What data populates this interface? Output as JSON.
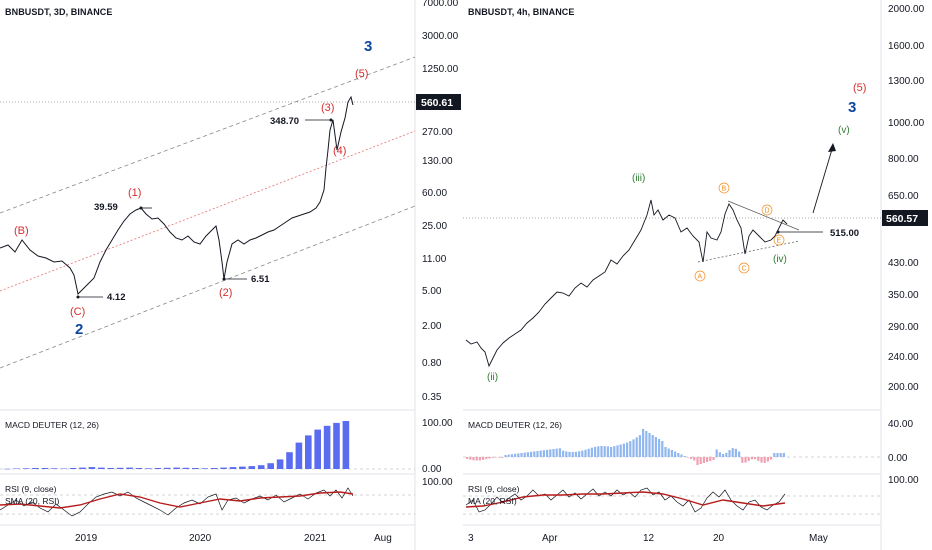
{
  "chart_data": [
    {
      "type": "line",
      "symbol": "BNBUSDT, 3D, BINANCE",
      "price_scale": "log",
      "y_ticks": [
        "7000.00",
        "3000.00",
        "1250.00",
        "560.61",
        "270.00",
        "130.00",
        "60.00",
        "25.00",
        "11.00",
        "5.00",
        "2.00",
        "0.80",
        "0.35"
      ],
      "last_price": "560.61",
      "x_ticks": [
        "2019",
        "2020",
        "2021",
        "Aug"
      ],
      "series": [
        {
          "values": [
            {
              "date": "2018-07",
              "close": 15.5
            },
            {
              "date": "2018-09",
              "close": 10.2
            },
            {
              "date": "2018-11",
              "close": 7.0
            },
            {
              "date": "2018-12",
              "close": 4.12
            },
            {
              "date": "2019-02",
              "close": 10.5
            },
            {
              "date": "2019-04",
              "close": 22.0
            },
            {
              "date": "2019-06",
              "close": 39.59
            },
            {
              "date": "2019-08",
              "close": 28.0
            },
            {
              "date": "2019-10",
              "close": 18.0
            },
            {
              "date": "2019-12",
              "close": 14.0
            },
            {
              "date": "2020-02",
              "close": 24.0
            },
            {
              "date": "2020-03",
              "close": 6.51
            },
            {
              "date": "2020-05",
              "close": 17.0
            },
            {
              "date": "2020-08",
              "close": 23.0
            },
            {
              "date": "2020-11",
              "close": 30.0
            },
            {
              "date": "2021-01",
              "close": 45.0
            },
            {
              "date": "2021-02",
              "close": 348.7
            },
            {
              "date": "2021-03",
              "close": 200.0
            },
            {
              "date": "2021-04",
              "close": 560.61
            }
          ]
        }
      ],
      "annotations": [
        {
          "text": "3",
          "kind": "wave-blue"
        },
        {
          "text": "2",
          "kind": "wave-blue"
        },
        {
          "text": "(5)",
          "kind": "wave-red"
        },
        {
          "text": "(3)",
          "kind": "wave-red"
        },
        {
          "text": "(4)",
          "kind": "wave-red"
        },
        {
          "text": "(1)",
          "kind": "wave-red"
        },
        {
          "text": "(2)",
          "kind": "wave-red"
        },
        {
          "text": "(B)",
          "kind": "wave-red"
        },
        {
          "text": "(C)",
          "kind": "wave-red"
        },
        {
          "text": "348.70",
          "kind": "price"
        },
        {
          "text": "39.59",
          "kind": "price"
        },
        {
          "text": "6.51",
          "kind": "price"
        },
        {
          "text": "4.12",
          "kind": "price"
        }
      ],
      "indicators": [
        {
          "label": "MACD DEUTER (12, 26)",
          "y_ticks": [
            "100.00",
            "0.00"
          ],
          "values": [
            0.5,
            1,
            1.5,
            2,
            2,
            1.5,
            1,
            2,
            3,
            4,
            3,
            2,
            2.5,
            3,
            2,
            1.5,
            2,
            2.5,
            3,
            2.5,
            2,
            1.5,
            2,
            3,
            4,
            5,
            6,
            8,
            12,
            20,
            35,
            55,
            70,
            82,
            90,
            96,
            100
          ]
        },
        {
          "label": "RSI (9, close)",
          "label2": "SMA (20, RSI)",
          "y_ticks": [
            "100.00"
          ]
        }
      ]
    },
    {
      "type": "line",
      "symbol": "BNBUSDT, 4h, BINANCE",
      "price_scale": "log",
      "y_ticks": [
        "2000.00",
        "1600.00",
        "1300.00",
        "1000.00",
        "800.00",
        "650.00",
        "560.57",
        "430.00",
        "350.00",
        "290.00",
        "240.00",
        "200.00"
      ],
      "last_price": "560.57",
      "x_ticks": [
        "3",
        "Apr",
        "12",
        "20",
        "May"
      ],
      "series": [
        {
          "values": [
            {
              "date": "2021-03-03",
              "close": 262
            },
            {
              "date": "2021-03-05",
              "close": 230
            },
            {
              "date": "2021-03-09",
              "close": 255
            },
            {
              "date": "2021-03-15",
              "close": 300
            },
            {
              "date": "2021-03-22",
              "close": 360
            },
            {
              "date": "2021-03-29",
              "close": 390
            },
            {
              "date": "2021-04-04",
              "close": 480
            },
            {
              "date": "2021-04-09",
              "close": 580
            },
            {
              "date": "2021-04-12",
              "close": 610
            },
            {
              "date": "2021-04-14",
              "close": 555
            },
            {
              "date": "2021-04-16",
              "close": 560
            },
            {
              "date": "2021-04-18",
              "close": 440
            },
            {
              "date": "2021-04-20",
              "close": 550
            },
            {
              "date": "2021-04-22",
              "close": 610
            },
            {
              "date": "2021-04-23",
              "close": 470
            },
            {
              "date": "2021-04-25",
              "close": 520
            },
            {
              "date": "2021-04-26",
              "close": 480
            },
            {
              "date": "2021-04-28",
              "close": 540
            },
            {
              "date": "2021-04-29",
              "close": 560.57
            }
          ]
        }
      ],
      "annotations": [
        {
          "text": "3",
          "kind": "wave-blue"
        },
        {
          "text": "(5)",
          "kind": "wave-red"
        },
        {
          "text": "(v)",
          "kind": "wave-green"
        },
        {
          "text": "(iii)",
          "kind": "wave-green"
        },
        {
          "text": "(ii)",
          "kind": "wave-green"
        },
        {
          "text": "(iv)",
          "kind": "wave-green"
        },
        {
          "text": "A",
          "kind": "wave-orange"
        },
        {
          "text": "B",
          "kind": "wave-orange"
        },
        {
          "text": "C",
          "kind": "wave-orange"
        },
        {
          "text": "D",
          "kind": "wave-orange"
        },
        {
          "text": "E",
          "kind": "wave-orange"
        },
        {
          "text": "515.00",
          "kind": "price"
        }
      ],
      "indicators": [
        {
          "label": "MACD DEUTER (12, 26)",
          "y_ticks": [
            "40.00",
            "0.00"
          ]
        },
        {
          "label": "RSI (9, close)",
          "label2": "MA (20, RSI)",
          "y_ticks": [
            "100.00"
          ]
        }
      ]
    }
  ],
  "colors": {
    "price_line": "#131722",
    "axis_text": "#131722",
    "wave_red": "#d32f2f",
    "wave_blue": "#0d47a1",
    "wave_green": "#2e7d32",
    "wave_orange": "#ef8c1a",
    "macd_blue": "#5a6cf0",
    "macd_pos": "#90b7f0",
    "macd_neg": "#f0a0b0",
    "rsi_ma": "#b71c1c",
    "tag_bg": "#131722"
  }
}
